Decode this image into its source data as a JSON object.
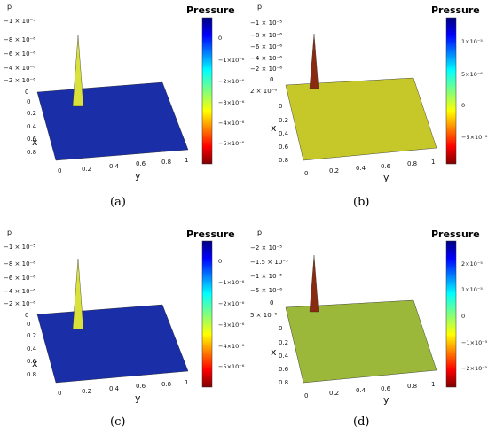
{
  "chart_data": [
    {
      "type": "surface",
      "panel": "a",
      "caption": "(a)",
      "surface_color": "#1a2ea8",
      "peak_color": "#d8e23a",
      "colorbar": {
        "title": "Pressure",
        "ticks": [
          "0",
          "−1×10⁻⁶",
          "−2×10⁻⁶",
          "−3×10⁻⁶",
          "−4×10⁻⁶",
          "−5×10⁻⁶"
        ]
      },
      "zlabel": "p",
      "z_ticks": [
        "−1 × 10⁻⁵",
        "−8 × 10⁻⁶",
        "−6 × 10⁻⁶",
        "−4 × 10⁻⁶",
        "−2 × 10⁻⁶",
        "0"
      ],
      "xlabel": "x",
      "x_ticks": [
        "0",
        "0.2",
        "0.4",
        "0.6",
        "0.8"
      ],
      "ylabel": "y",
      "y_ticks": [
        "0",
        "0.2",
        "0.4",
        "0.6",
        "0.8",
        "1"
      ],
      "x_range": [
        0,
        1
      ],
      "y_range": [
        0,
        1
      ],
      "peak": {
        "x": 0.12,
        "y": 0.12,
        "z": -1e-05
      }
    },
    {
      "type": "surface",
      "panel": "b",
      "caption": "(b)",
      "surface_color": "#c6c82a",
      "peak_color": "#8a2a10",
      "colorbar": {
        "title": "Pressure",
        "ticks": [
          "1×10⁻⁵",
          "5×10⁻⁶",
          "0",
          "−5×10⁻⁶"
        ]
      },
      "zlabel": "p",
      "z_ticks": [
        "−1 × 10⁻⁵",
        "−8 × 10⁻⁶",
        "−6 × 10⁻⁶",
        "−4 × 10⁻⁶",
        "−2 × 10⁻⁶",
        "0",
        "2 × 10⁻⁶"
      ],
      "xlabel": "x",
      "x_ticks": [
        "0",
        "0.2",
        "0.4",
        "0.6",
        "0.8"
      ],
      "ylabel": "y",
      "y_ticks": [
        "0",
        "0.2",
        "0.4",
        "0.6",
        "0.8",
        "1"
      ],
      "x_range": [
        0,
        1
      ],
      "y_range": [
        0,
        1
      ],
      "peak": {
        "x": 0.1,
        "y": 0.1,
        "z": -1e-05
      }
    },
    {
      "type": "surface",
      "panel": "c",
      "caption": "(c)",
      "surface_color": "#1a2ea8",
      "peak_color": "#d8e23a",
      "colorbar": {
        "title": "Pressure",
        "ticks": [
          "0",
          "−1×10⁻⁶",
          "−2×10⁻⁶",
          "−3×10⁻⁶",
          "−4×10⁻⁶",
          "−5×10⁻⁶"
        ]
      },
      "zlabel": "p",
      "z_ticks": [
        "−1 × 10⁻⁵",
        "−8 × 10⁻⁶",
        "−6 × 10⁻⁶",
        "−4 × 10⁻⁶",
        "−2 × 10⁻⁶",
        "0"
      ],
      "xlabel": "x",
      "x_ticks": [
        "0",
        "0.2",
        "0.4",
        "0.6",
        "0.8"
      ],
      "ylabel": "y",
      "y_ticks": [
        "0",
        "0.2",
        "0.4",
        "0.6",
        "0.8",
        "1"
      ],
      "x_range": [
        0,
        1
      ],
      "y_range": [
        0,
        1
      ],
      "peak": {
        "x": 0.12,
        "y": 0.12,
        "z": -1e-05
      }
    },
    {
      "type": "surface",
      "panel": "d",
      "caption": "(d)",
      "surface_color": "#9bb83a",
      "peak_color": "#8a2a10",
      "colorbar": {
        "title": "Pressure",
        "ticks": [
          "2×10⁻⁵",
          "1×10⁻⁵",
          "0",
          "−1×10⁻⁵",
          "−2×10⁻⁵"
        ]
      },
      "zlabel": "p",
      "z_ticks": [
        "−2 × 10⁻⁵",
        "−1.5 × 10⁻⁵",
        "−1 × 10⁻⁵",
        "−5 × 10⁻⁶",
        "0",
        "5 × 10⁻⁶"
      ],
      "xlabel": "x",
      "x_ticks": [
        "0",
        "0.2",
        "0.4",
        "0.6",
        "0.8"
      ],
      "ylabel": "y",
      "y_ticks": [
        "0",
        "0.2",
        "0.4",
        "0.6",
        "0.8",
        "1"
      ],
      "x_range": [
        0,
        1
      ],
      "y_range": [
        0,
        1
      ],
      "peak": {
        "x": 0.1,
        "y": 0.1,
        "z": -2e-05
      }
    }
  ]
}
